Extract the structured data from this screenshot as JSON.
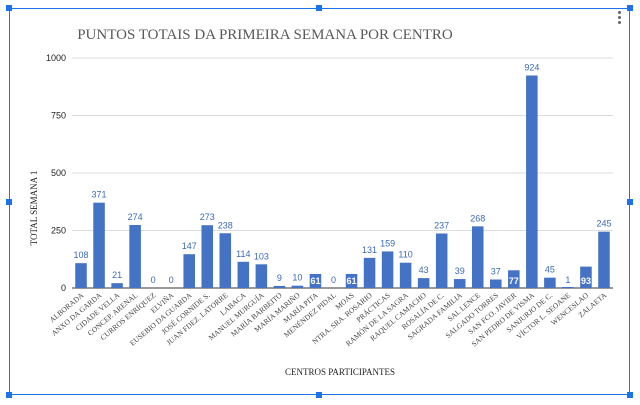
{
  "chart_data": {
    "type": "bar",
    "title": "PUNTOS TOTAIS DA PRIMEIRA SEMANA POR CENTRO",
    "xlabel": "CENTROS PARTICIPANTES",
    "ylabel": "TOTAL SEMANA 1",
    "ylim": [
      0,
      1000
    ],
    "yticks": [
      "0",
      "250",
      "500",
      "750",
      "1000"
    ],
    "grid": true,
    "bar_color": "#4472c4",
    "categories": [
      "ALBORADA",
      "ANXO DA GARDA",
      "CIDADE VELLA",
      "CONCEP. ARENAL",
      "CURROS ENRÍQUEZ",
      "ELVIÑA",
      "EUSEBIO DA GUARDA",
      "JOSÉ CORNIDE S.",
      "JUAN FDEZ. LATORRE",
      "LABACA",
      "MANUEL MURGUÍA",
      "MARÍA BARBEITO",
      "MARÍA MARIÑO",
      "MARÍA PITA",
      "MENÉNDEZ PIDAL",
      "MOAS",
      "NTRA. SRA. ROSARIO",
      "PRÁCTICAS",
      "RAMÓN DE LA SAGRA",
      "RAQUEL CAMACHO",
      "ROSALÍA DE C.",
      "SAGRADA FAMILIA",
      "SAL LENCE",
      "SALGADO TORRES",
      "SAN FCO. JAVIER",
      "SAN PEDRO DE VISMA",
      "SANJURJO DE C.",
      "VÍCTOR L. SEOANE",
      "WENCESLAO",
      "ZALAETA"
    ],
    "values": [
      108,
      371,
      21,
      274,
      0,
      0,
      147,
      273,
      238,
      114,
      103,
      9,
      10,
      61,
      0,
      61,
      131,
      159,
      110,
      43,
      237,
      39,
      268,
      37,
      77,
      924,
      45,
      1,
      93,
      245
    ],
    "labels": [
      "108",
      "371",
      "21",
      "274",
      "0",
      "0",
      "147",
      "273",
      "238",
      "114",
      "103",
      "9",
      "10",
      "61",
      "0",
      "61",
      "131",
      "159",
      "110",
      "43",
      "237",
      "39",
      "268",
      "37",
      "77",
      "924",
      "45",
      "1",
      "93",
      "245"
    ]
  }
}
